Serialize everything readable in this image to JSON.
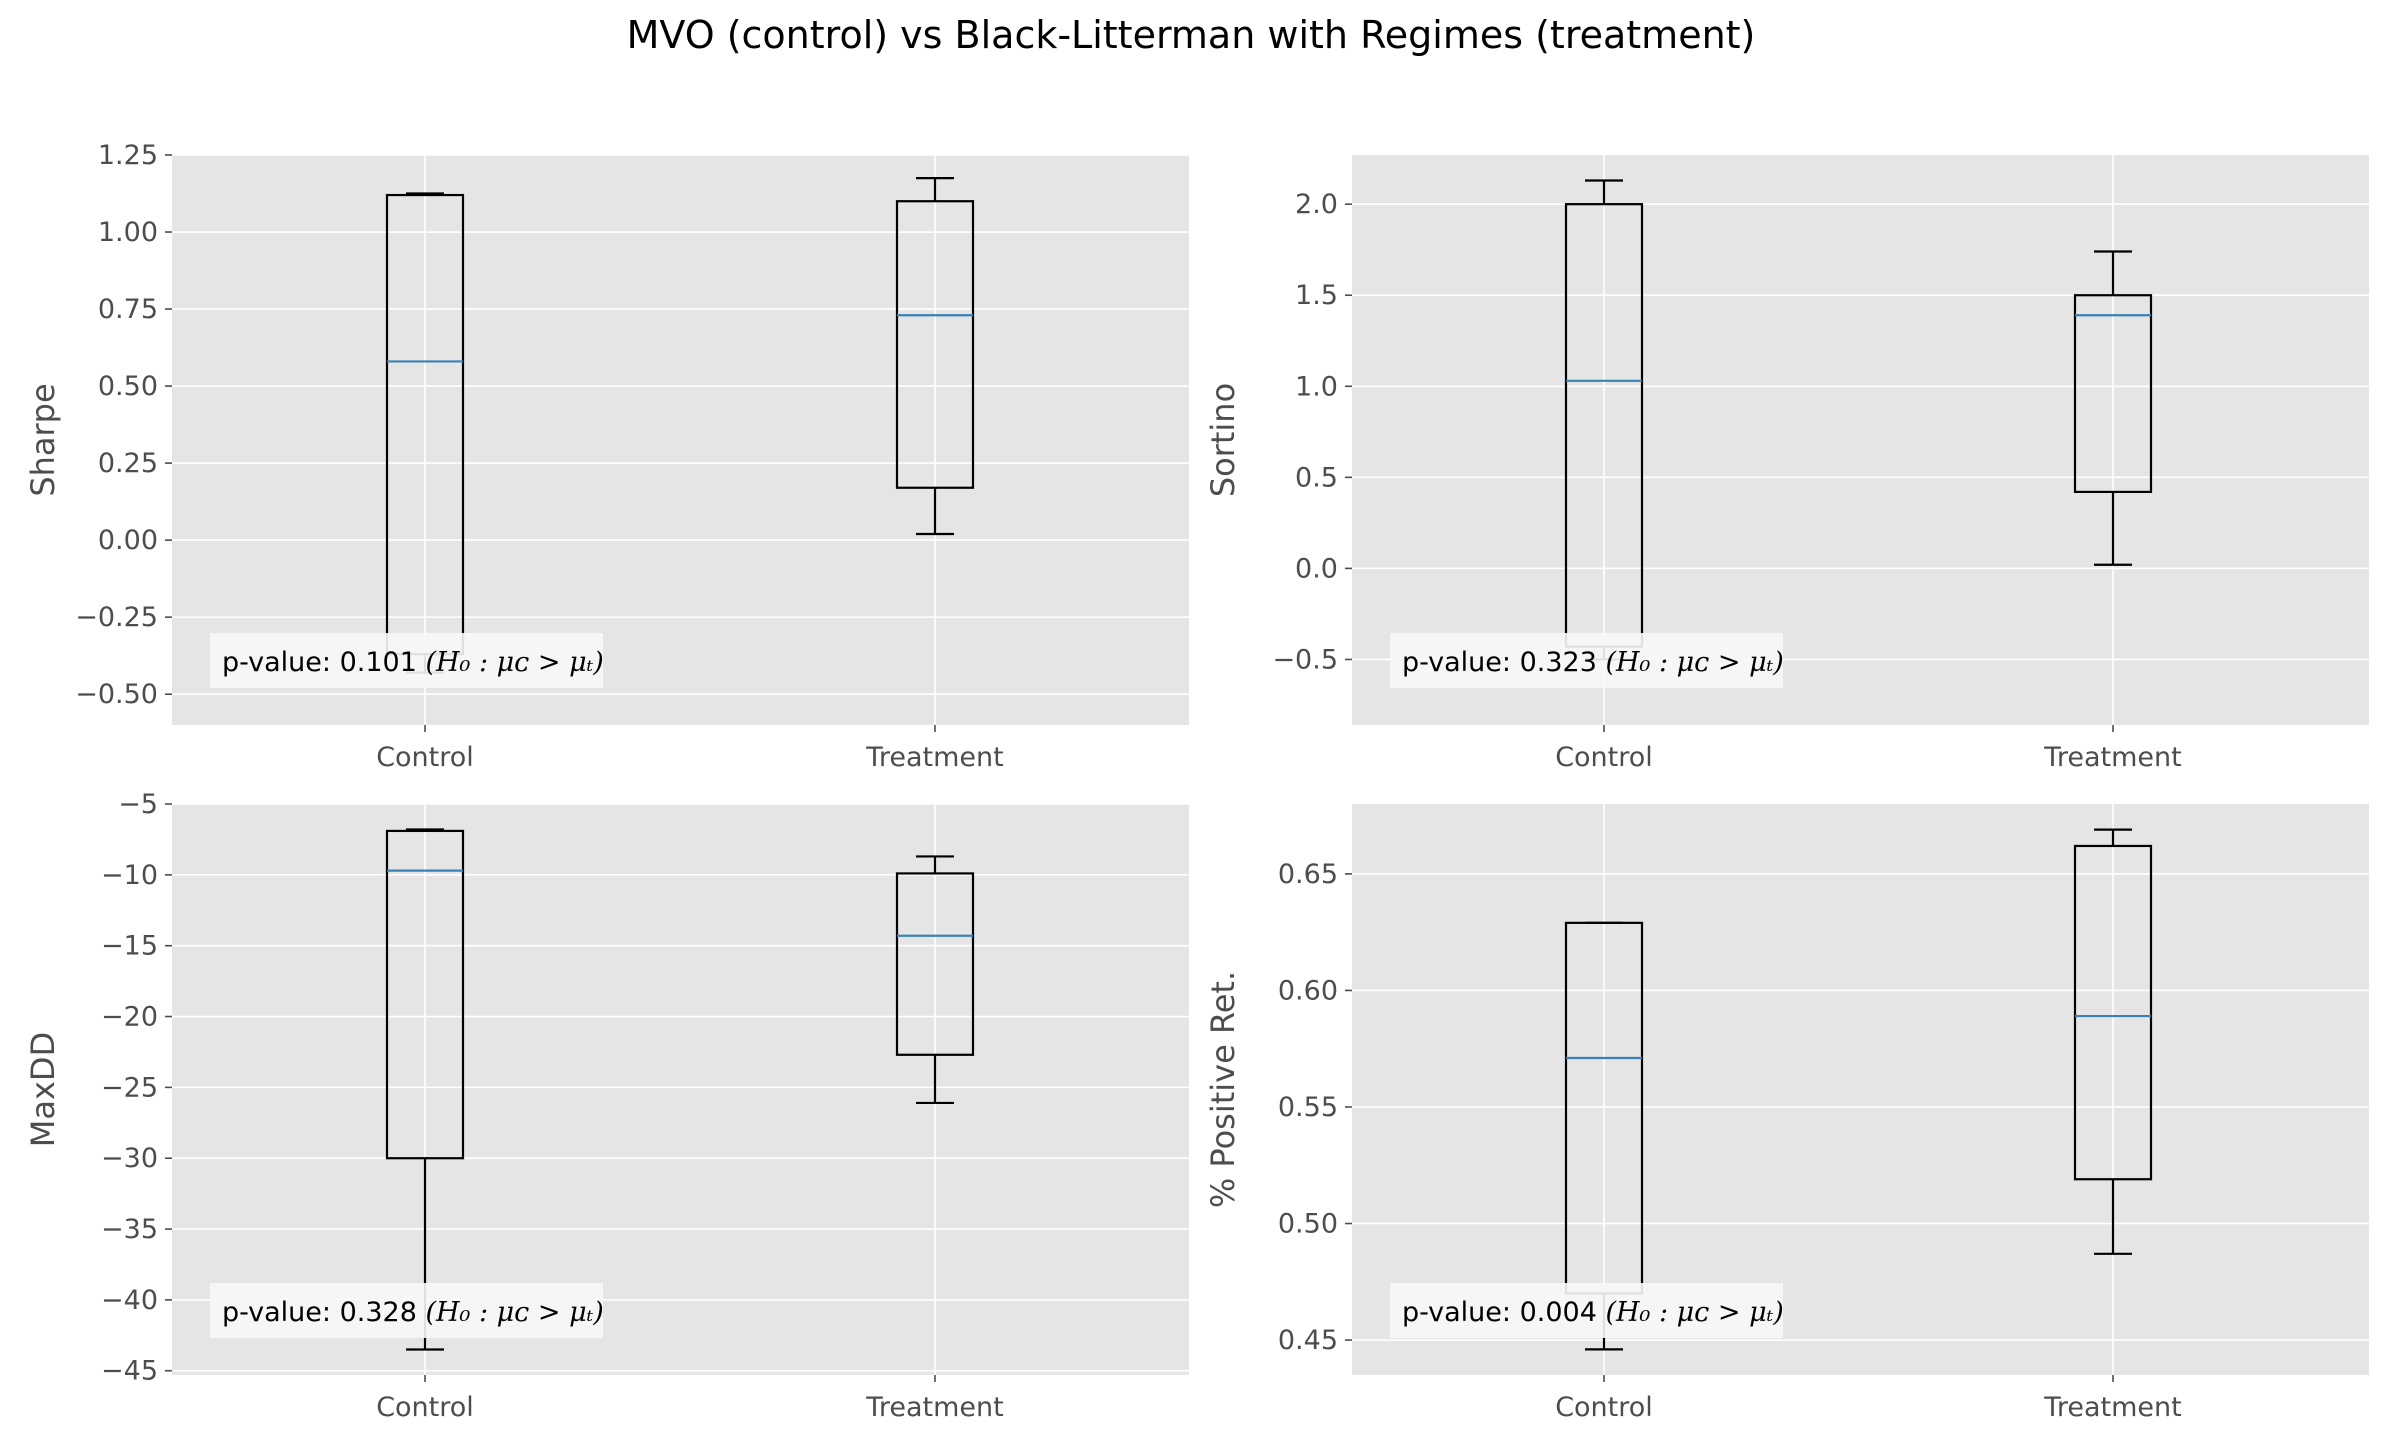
{
  "title": "MVO (control) vs Black-Litterman with Regimes (treatment)",
  "colors": {
    "axes_bg": "#e5e5e5",
    "grid": "#ffffff",
    "box": "#000000",
    "median": "#3a81b5",
    "tick_text": "#4d4d4d",
    "annot_bg": "#f7f7f7"
  },
  "chart_data": [
    {
      "type": "box",
      "ylabel": "Sharpe",
      "categories": [
        "Control",
        "Treatment"
      ],
      "ylim": [
        -0.6,
        1.25
      ],
      "yticks": [
        -0.5,
        -0.25,
        0.0,
        0.25,
        0.5,
        0.75,
        1.0,
        1.25
      ],
      "tick_labels": [
        "−0.50",
        "−0.25",
        "0.00",
        "0.25",
        "0.50",
        "0.75",
        "1.00",
        "1.25"
      ],
      "boxes": [
        {
          "whislo": -0.43,
          "q1": -0.37,
          "med": 0.58,
          "q3": 1.12,
          "whishi": 1.125
        },
        {
          "whislo": 0.02,
          "q1": 0.17,
          "med": 0.73,
          "q3": 1.1,
          "whishi": 1.175
        }
      ],
      "p_value": "0.101",
      "annotation_prefix": "p-value: ",
      "annotation_hypothesis": "(H₀ : μᴄ > μₜ)"
    },
    {
      "type": "box",
      "ylabel": "Sortino",
      "categories": [
        "Control",
        "Treatment"
      ],
      "ylim": [
        -0.86,
        2.27
      ],
      "yticks": [
        -0.5,
        0.0,
        0.5,
        1.0,
        1.5,
        2.0
      ],
      "tick_labels": [
        "−0.5",
        "0.0",
        "0.5",
        "1.0",
        "1.5",
        "2.0"
      ],
      "boxes": [
        {
          "whislo": -0.5,
          "q1": -0.43,
          "med": 1.03,
          "q3": 2.0,
          "whishi": 2.13
        },
        {
          "whislo": 0.02,
          "q1": 0.42,
          "med": 1.39,
          "q3": 1.5,
          "whishi": 1.74
        }
      ],
      "p_value": "0.323",
      "annotation_prefix": "p-value: ",
      "annotation_hypothesis": "(H₀ : μᴄ > μₜ)"
    },
    {
      "type": "box",
      "ylabel": "MaxDD",
      "categories": [
        "Control",
        "Treatment"
      ],
      "ylim": [
        -45.3,
        -5.0
      ],
      "yticks": [
        -45,
        -40,
        -35,
        -30,
        -25,
        -20,
        -15,
        -10,
        -5
      ],
      "tick_labels": [
        "−45",
        "−40",
        "−35",
        "−30",
        "−25",
        "−20",
        "−15",
        "−10",
        "−5"
      ],
      "boxes": [
        {
          "whislo": -43.5,
          "q1": -30.0,
          "med": -9.7,
          "q3": -6.9,
          "whishi": -6.8
        },
        {
          "whislo": -26.1,
          "q1": -22.7,
          "med": -14.3,
          "q3": -9.9,
          "whishi": -8.7
        }
      ],
      "p_value": "0.328",
      "annotation_prefix": "p-value: ",
      "annotation_hypothesis": "(H₀ : μᴄ > μₜ)"
    },
    {
      "type": "box",
      "ylabel": "% Positive Ret.",
      "categories": [
        "Control",
        "Treatment"
      ],
      "ylim": [
        0.435,
        0.68
      ],
      "yticks": [
        0.45,
        0.5,
        0.55,
        0.6,
        0.65
      ],
      "tick_labels": [
        "0.45",
        "0.50",
        "0.55",
        "0.60",
        "0.65"
      ],
      "boxes": [
        {
          "whislo": 0.446,
          "q1": 0.47,
          "med": 0.571,
          "q3": 0.629,
          "whishi": 0.629
        },
        {
          "whislo": 0.487,
          "q1": 0.519,
          "med": 0.589,
          "q3": 0.662,
          "whishi": 0.669
        }
      ],
      "p_value": "0.004",
      "annotation_prefix": "p-value: ",
      "annotation_hypothesis": "(H₀ : μᴄ > μₜ)"
    }
  ]
}
